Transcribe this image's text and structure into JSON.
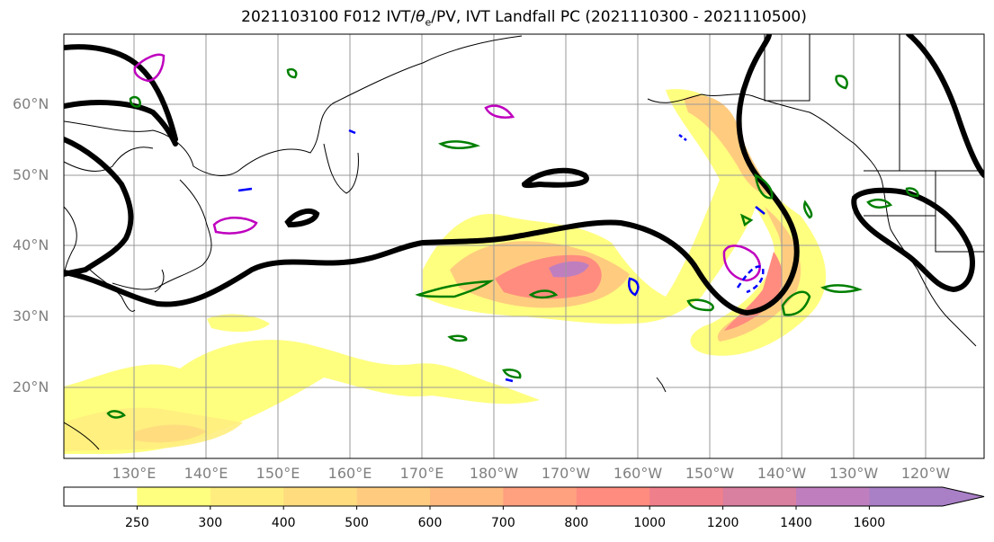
{
  "title": {
    "prefix": "2021103100 F012 IVT/",
    "theta": "θ",
    "theta_sub": "e",
    "suffix": "/PV, IVT Landfall PC (2021110300 - 2021110500)"
  },
  "lat_labels": [
    "60°N",
    "50°N",
    "40°N",
    "30°N",
    "20°N"
  ],
  "lon_labels": [
    "130°E",
    "140°E",
    "150°E",
    "160°E",
    "170°E",
    "180°W",
    "170°W",
    "160°W",
    "150°W",
    "140°W",
    "130°W",
    "120°W"
  ],
  "colorbar": {
    "ticks": [
      "250",
      "300",
      "400",
      "500",
      "600",
      "700",
      "800",
      "1000",
      "1200",
      "1400",
      "1600"
    ],
    "colors": [
      "#ffffff",
      "#ffff7f",
      "#ffee7f",
      "#ffdd7f",
      "#ffcc7f",
      "#ffbb7f",
      "#ffa07f",
      "#ff8c7f",
      "#f07f8c",
      "#d97f9f",
      "#bf7fbf",
      "#a97fc6"
    ]
  },
  "colors": {
    "ivt_light": "#ffff7f",
    "ivt_mid": "#ffcc7f",
    "ivt_core": "#f07f8c",
    "ivt_max": "#bf7fbf",
    "pv": "#000000",
    "theta_e": "#007f00",
    "magenta": "#bf00bf",
    "blue": "#0000ff"
  }
}
